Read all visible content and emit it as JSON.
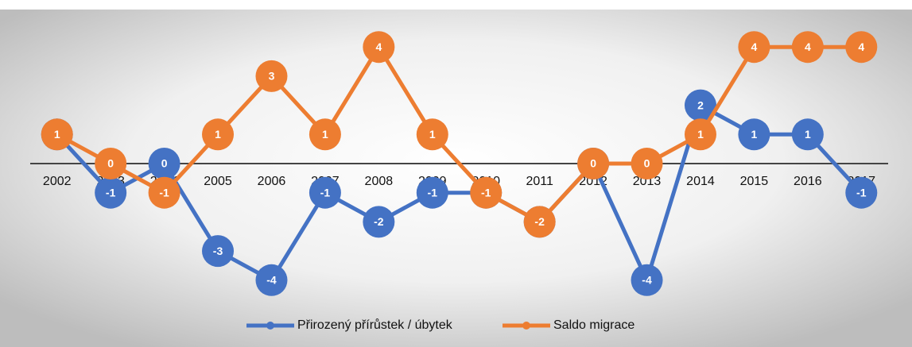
{
  "chart_data": {
    "type": "line",
    "categories": [
      "2002",
      "2003",
      "2004",
      "2005",
      "2006",
      "2007",
      "2008",
      "2009",
      "2010",
      "2011",
      "2012",
      "2013",
      "2014",
      "2015",
      "2016",
      "2017"
    ],
    "series": [
      {
        "name": "Přirozený přírůstek / úbytek",
        "color": "#4472c4",
        "values": [
          1,
          -1,
          0,
          -3,
          -4,
          -1,
          -2,
          -1,
          -1,
          -2,
          0,
          -4,
          2,
          1,
          1,
          -1
        ]
      },
      {
        "name": "Saldo migrace",
        "color": "#ed7d31",
        "values": [
          1,
          0,
          -1,
          1,
          3,
          1,
          4,
          1,
          -1,
          -2,
          0,
          0,
          1,
          4,
          4,
          4
        ]
      }
    ],
    "ylim": [
      -5,
      5
    ]
  }
}
